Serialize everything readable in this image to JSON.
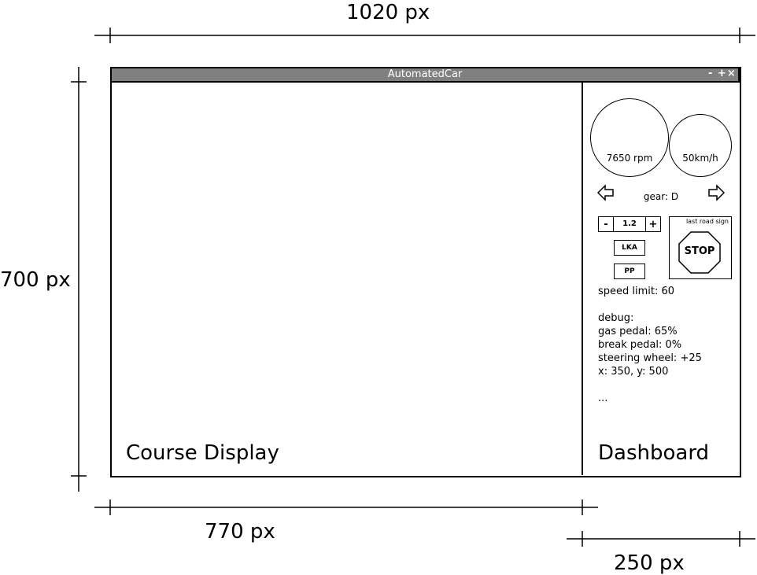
{
  "dimensions": {
    "total_width": "1020 px",
    "total_height": "700 px",
    "course_width": "770 px",
    "dashboard_width": "250 px"
  },
  "window": {
    "title": "AutomatedCar",
    "controls": "- +×"
  },
  "panels": {
    "course_display": "Course Display",
    "dashboard": "Dashboard"
  },
  "dashboard": {
    "rpm": "7650 rpm",
    "speed": "50km/h",
    "gear": "gear: D",
    "acc": {
      "minus": "-",
      "value": "1.2",
      "plus": "+"
    },
    "lka_label": "LKA",
    "pp_label": "PP",
    "last_road_sign_label": "last road sign",
    "road_sign_text": "STOP",
    "speed_limit": "speed limit: 60",
    "debug": {
      "heading": "debug:",
      "gas_pedal": "gas pedal: 65%",
      "break_pedal": "break pedal: 0%",
      "steering_wheel": "steering wheel: +25",
      "position": "x: 350, y: 500",
      "more": "..."
    }
  },
  "icons": {
    "left_indicator": "arrow-left-icon",
    "right_indicator": "arrow-right-icon",
    "stop_sign": "octagon-stop-icon"
  }
}
